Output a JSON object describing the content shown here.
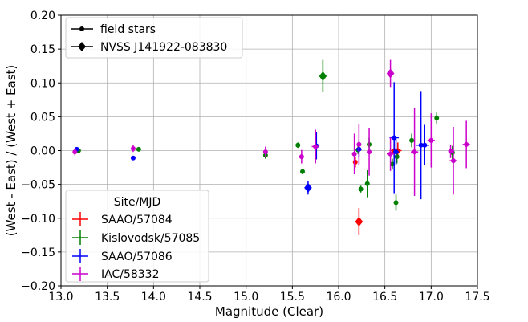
{
  "chart_data": {
    "type": "scatter",
    "title": "",
    "xlabel": "Magnitude (Clear)",
    "ylabel": "(West - East) / (West + East)",
    "xlim": [
      13.0,
      17.5
    ],
    "ylim": [
      -0.2,
      0.2
    ],
    "x_ticks": [
      "13.0",
      "13.5",
      "14.0",
      "14.5",
      "15.0",
      "15.5",
      "16.0",
      "16.5",
      "17.0",
      "17.5"
    ],
    "y_ticks": [
      "−0.20",
      "−0.15",
      "−0.10",
      "−0.05",
      "0.00",
      "0.05",
      "0.10",
      "0.15",
      "0.20"
    ],
    "grid": true,
    "marker_legend": {
      "placement": "upper-left",
      "entries": [
        {
          "label": "field stars",
          "marker": "circle"
        },
        {
          "label": "NVSS J141922-083830",
          "marker": "diamond"
        }
      ]
    },
    "site_legend": {
      "placement": "lower-left",
      "title": "Site/MJD",
      "entries": [
        {
          "label": "SAAO/57084",
          "color": "#ff0000"
        },
        {
          "label": "Kislovodsk/57085",
          "color": "#008000"
        },
        {
          "label": "SAAO/57086",
          "color": "#0000ff"
        },
        {
          "label": "IAC/58332",
          "color": "#cc00cc"
        }
      ]
    },
    "series": [
      {
        "name": "SAAO/57084",
        "color": "#ff0000",
        "field_stars": [
          {
            "x": 16.18,
            "y": -0.017,
            "xerr": 0.02,
            "yerr": 0.008
          },
          {
            "x": 16.6,
            "y": 0.0,
            "xerr": 0.05,
            "yerr": 0.012
          },
          {
            "x": 16.64,
            "y": 0.0,
            "xerr": 0.04,
            "yerr": 0.012
          }
        ],
        "target": {
          "x": 16.22,
          "y": -0.105,
          "xerr": 0.03,
          "yerr": 0.02
        }
      },
      {
        "name": "Kislovodsk/57085",
        "color": "#008000",
        "field_stars": [
          {
            "x": 13.17,
            "y": 0.001,
            "xerr": 0,
            "yerr": 0.003
          },
          {
            "x": 13.19,
            "y": 0.0,
            "xerr": 0,
            "yerr": 0.003
          },
          {
            "x": 13.84,
            "y": 0.002,
            "xerr": 0,
            "yerr": 0.003
          },
          {
            "x": 15.21,
            "y": -0.007,
            "xerr": 0,
            "yerr": 0.005
          },
          {
            "x": 15.56,
            "y": 0.008,
            "xerr": 0,
            "yerr": 0.004
          },
          {
            "x": 15.61,
            "y": -0.031,
            "xerr": 0,
            "yerr": 0.004
          },
          {
            "x": 16.21,
            "y": 0.001,
            "xerr": 0,
            "yerr": 0.006
          },
          {
            "x": 16.24,
            "y": -0.057,
            "xerr": 0,
            "yerr": 0.005
          },
          {
            "x": 16.31,
            "y": -0.049,
            "xerr": 0,
            "yerr": 0.02
          },
          {
            "x": 16.33,
            "y": 0.009,
            "xerr": 0,
            "yerr": 0.01
          },
          {
            "x": 16.58,
            "y": -0.02,
            "xerr": 0,
            "yerr": 0.008
          },
          {
            "x": 16.62,
            "y": -0.077,
            "xerr": 0,
            "yerr": 0.012
          },
          {
            "x": 16.63,
            "y": -0.009,
            "xerr": 0,
            "yerr": 0.01
          },
          {
            "x": 16.79,
            "y": 0.015,
            "xerr": 0,
            "yerr": 0.01
          },
          {
            "x": 17.06,
            "y": 0.048,
            "xerr": 0,
            "yerr": 0.008
          },
          {
            "x": 17.23,
            "y": -0.003,
            "xerr": 0,
            "yerr": 0.01
          }
        ],
        "target": {
          "x": 15.83,
          "y": 0.11,
          "xerr": 0.03,
          "yerr": 0.024
        }
      },
      {
        "name": "SAAO/57086",
        "color": "#0000ff",
        "field_stars": [
          {
            "x": 13.17,
            "y": 0.002,
            "xerr": 0,
            "yerr": 0.003
          },
          {
            "x": 13.78,
            "y": -0.011,
            "xerr": 0,
            "yerr": 0.003
          },
          {
            "x": 15.76,
            "y": 0.007,
            "xerr": 0,
            "yerr": 0.02
          },
          {
            "x": 16.22,
            "y": 0.002,
            "xerr": 0.03,
            "yerr": 0.012
          },
          {
            "x": 16.6,
            "y": 0.019,
            "xerr": 0.05,
            "yerr": 0.082
          },
          {
            "x": 16.62,
            "y": -0.002,
            "xerr": 0.03,
            "yerr": 0.02
          },
          {
            "x": 16.89,
            "y": 0.008,
            "xerr": 0.05,
            "yerr": 0.08
          },
          {
            "x": 16.93,
            "y": 0.008,
            "xerr": 0.05,
            "yerr": 0.03
          }
        ],
        "target": {
          "x": 15.67,
          "y": -0.055,
          "xerr": 0.03,
          "yerr": 0.01
        }
      },
      {
        "name": "IAC/58332",
        "color": "#cc00cc",
        "field_stars": [
          {
            "x": 13.15,
            "y": -0.002,
            "xerr": 0,
            "yerr": 0.005
          },
          {
            "x": 13.78,
            "y": 0.003,
            "xerr": 0,
            "yerr": 0.005
          },
          {
            "x": 15.21,
            "y": -0.002,
            "xerr": 0,
            "yerr": 0.008
          },
          {
            "x": 15.6,
            "y": -0.009,
            "xerr": 0,
            "yerr": 0.01
          },
          {
            "x": 15.75,
            "y": 0.006,
            "xerr": 0.04,
            "yerr": 0.025
          },
          {
            "x": 16.17,
            "y": -0.005,
            "xerr": 0.02,
            "yerr": 0.03
          },
          {
            "x": 16.22,
            "y": 0.009,
            "xerr": 0,
            "yerr": 0.03
          },
          {
            "x": 16.33,
            "y": -0.002,
            "xerr": 0,
            "yerr": 0.035
          },
          {
            "x": 16.56,
            "y": -0.005,
            "xerr": 0.04,
            "yerr": 0.025
          },
          {
            "x": 16.82,
            "y": -0.002,
            "xerr": 0.04,
            "yerr": 0.065
          },
          {
            "x": 17.0,
            "y": 0.015,
            "xerr": 0.04,
            "yerr": 0.04
          },
          {
            "x": 17.21,
            "y": -0.001,
            "xerr": 0,
            "yerr": 0.01
          },
          {
            "x": 17.24,
            "y": -0.015,
            "xerr": 0.04,
            "yerr": 0.05
          },
          {
            "x": 17.38,
            "y": 0.009,
            "xerr": 0.04,
            "yerr": 0.035
          }
        ],
        "target": {
          "x": 16.56,
          "y": 0.114,
          "xerr": 0.03,
          "yerr": 0.02
        }
      }
    ]
  }
}
